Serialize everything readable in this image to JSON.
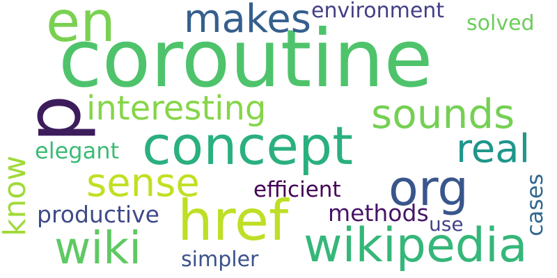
{
  "words": {
    "coroutine": {
      "text": "coroutine",
      "color": "#4ec36b"
    },
    "p": {
      "text": "p",
      "color": "#3d1c5c"
    },
    "en": {
      "text": "en",
      "color": "#7ad151"
    },
    "makes": {
      "text": "makes",
      "color": "#355f8d"
    },
    "environment": {
      "text": "environment",
      "color": "#433e85"
    },
    "solved": {
      "text": "solved",
      "color": "#6ccd5a"
    },
    "interesting": {
      "text": "interesting",
      "color": "#86d549"
    },
    "sounds": {
      "text": "sounds",
      "color": "#75d054"
    },
    "concept": {
      "text": "concept",
      "color": "#2ab07f"
    },
    "know": {
      "text": "know",
      "color": "#a0da39"
    },
    "elegant": {
      "text": "elegant",
      "color": "#3bbb75"
    },
    "real": {
      "text": "real",
      "color": "#1f968b"
    },
    "sense": {
      "text": "sense",
      "color": "#c2df23"
    },
    "org": {
      "text": "org",
      "color": "#39568c"
    },
    "efficient": {
      "text": "efficient",
      "color": "#440154"
    },
    "cases": {
      "text": "cases",
      "color": "#31688e"
    },
    "href": {
      "text": "href",
      "color": "#bddf26"
    },
    "productive": {
      "text": "productive",
      "color": "#3e4a89"
    },
    "methods": {
      "text": "methods",
      "color": "#471365"
    },
    "use": {
      "text": "use",
      "color": "#414487"
    },
    "wiki": {
      "text": "wiki",
      "color": "#5ec962"
    },
    "wikipedia": {
      "text": "wikipedia",
      "color": "#35b779"
    },
    "simpler": {
      "text": "simpler",
      "color": "#3b528b"
    }
  }
}
